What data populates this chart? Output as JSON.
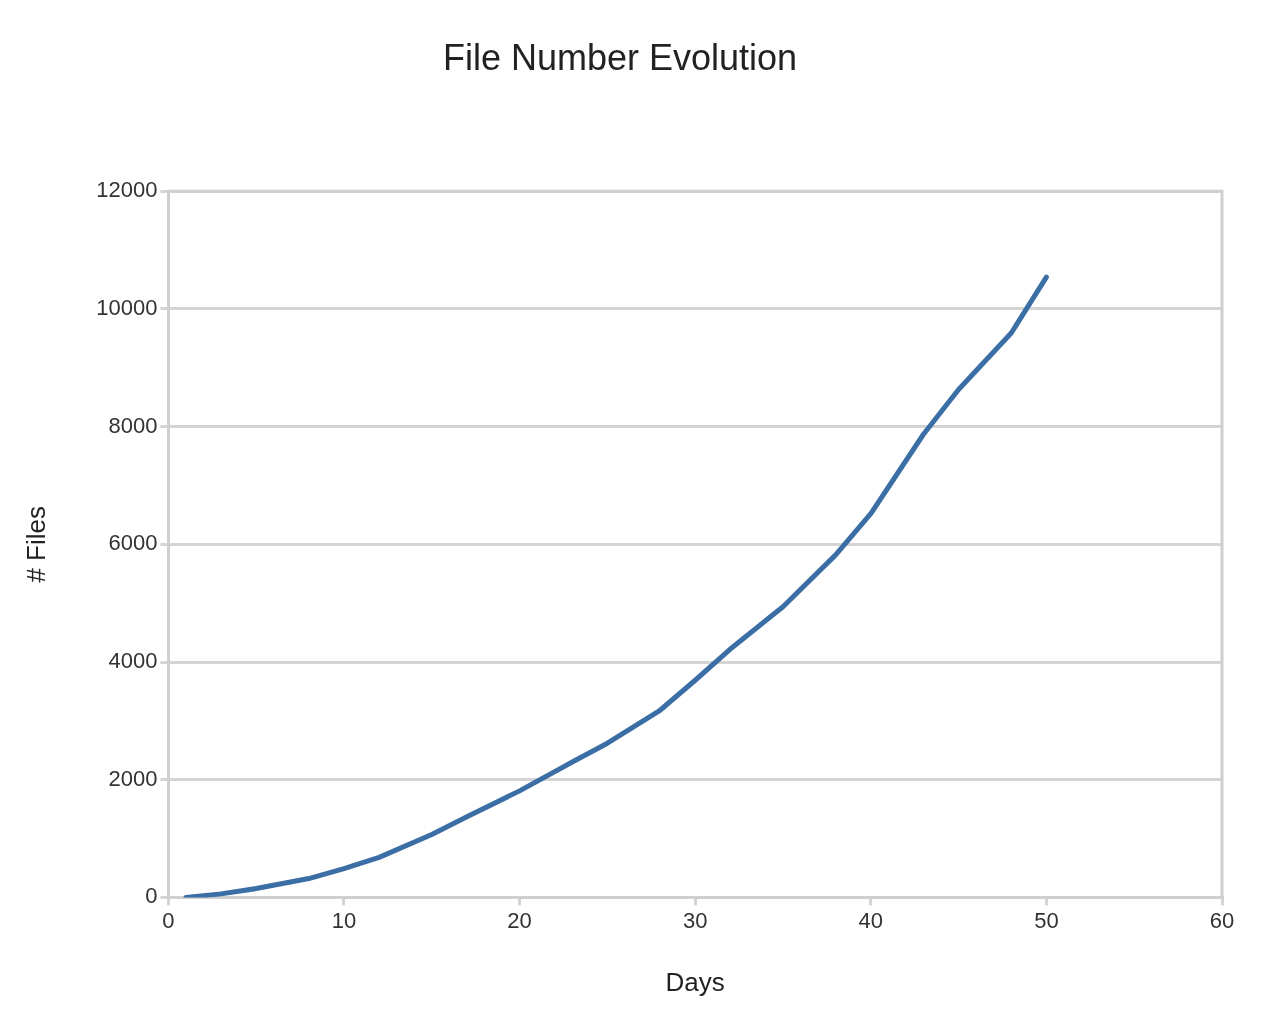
{
  "chart_data": {
    "type": "line",
    "title": "File Number Evolution",
    "xlabel": "Days",
    "ylabel": "# Files",
    "x": [
      1,
      3,
      5,
      8,
      10,
      12,
      15,
      17,
      20,
      23,
      25,
      28,
      30,
      32,
      35,
      38,
      40,
      43,
      45,
      48,
      50
    ],
    "series": [
      {
        "color": "#3a6ea5",
        "values": [
          0,
          60,
          150,
          320,
          490,
          680,
          1070,
          1370,
          1810,
          2300,
          2620,
          3180,
          3690,
          4220,
          4940,
          5820,
          6520,
          7870,
          8630,
          9590,
          10540
        ]
      }
    ],
    "xlim": [
      0,
      60
    ],
    "xticks": [
      0,
      10,
      20,
      30,
      40,
      50,
      60
    ],
    "ylim": [
      0,
      12000
    ],
    "yticks": [
      0,
      2000,
      4000,
      6000,
      8000,
      10000,
      12000
    ],
    "grid": "y",
    "legend": false,
    "marker": "none",
    "line_style": "solid"
  }
}
